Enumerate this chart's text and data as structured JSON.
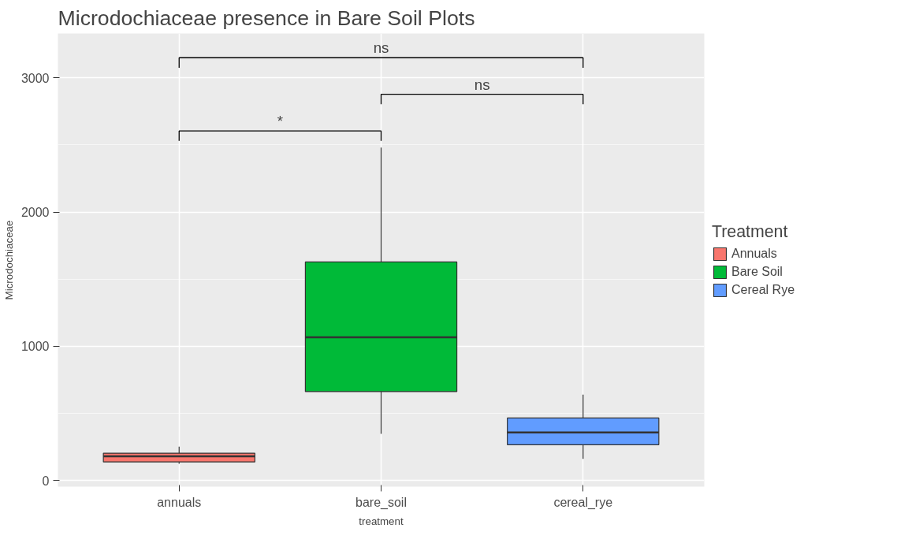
{
  "chart_data": {
    "type": "box",
    "title": "Microdochiaceae presence in Bare Soil Plots",
    "xlabel": "treatment",
    "ylabel": "Microdochiaceae",
    "legend_title": "Treatment",
    "categories": [
      "annuals",
      "bare_soil",
      "cereal_rye"
    ],
    "series": [
      {
        "name": "Annuals",
        "color": "#f8766d",
        "boxes": [
          {
            "low": 124,
            "q1": 138,
            "median": 180,
            "q3": 203,
            "high": 252
          },
          null,
          null
        ]
      },
      {
        "name": "Bare Soil",
        "color": "#00ba38",
        "boxes": [
          null,
          {
            "low": 347,
            "q1": 662,
            "median": 1066,
            "q3": 1628,
            "high": 2480
          },
          null
        ]
      },
      {
        "name": "Cereal Rye",
        "color": "#619cff",
        "boxes": [
          null,
          null,
          {
            "low": 161,
            "q1": 266,
            "median": 357,
            "q3": 465,
            "high": 639
          }
        ]
      }
    ],
    "ylim": [
      -46,
      3330
    ],
    "yticks": [
      0,
      1000,
      2000,
      3000
    ],
    "grid": true,
    "legend": "right",
    "annotations": [
      "*",
      "ns",
      "ns"
    ]
  }
}
